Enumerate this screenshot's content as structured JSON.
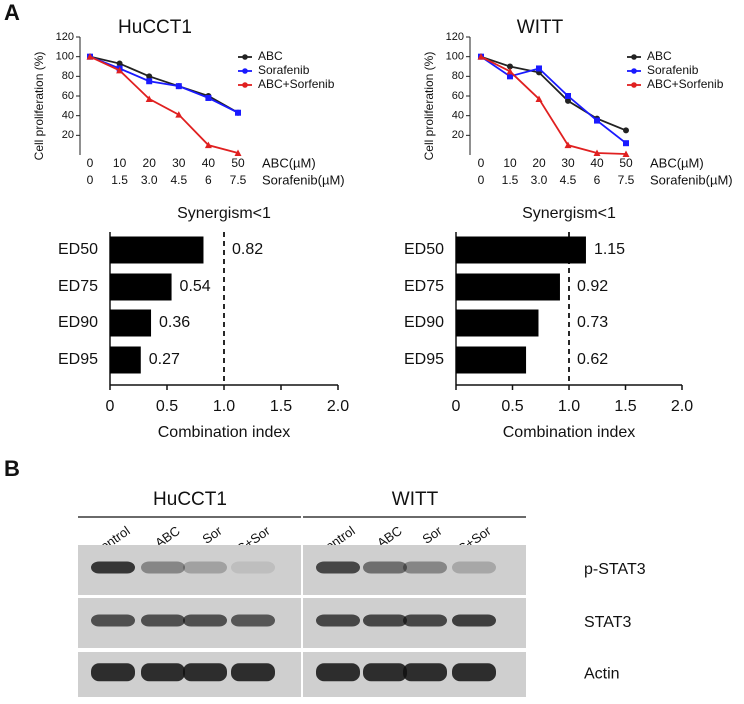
{
  "panels": [
    "A",
    "B"
  ],
  "chart_data": [
    {
      "type": "line",
      "title": "HuCCT1",
      "ylabel": "Cell proliferation (%)",
      "categories": [
        "0",
        "10",
        "20",
        "30",
        "40",
        "50"
      ],
      "category_label": "ABC(µM)",
      "categories2": [
        "0",
        "1.5",
        "3.0",
        "4.5",
        "6",
        "7.5"
      ],
      "category2_label": "Sorafenib(µM)",
      "ylim": [
        0,
        120
      ],
      "yticks": [
        20,
        40,
        60,
        80,
        100,
        120
      ],
      "series": [
        {
          "name": "ABC",
          "color": "#222222",
          "values": [
            100,
            93,
            80,
            70,
            60,
            43
          ]
        },
        {
          "name": "Sorafenib",
          "color": "#1a1aff",
          "values": [
            100,
            88,
            75,
            70,
            58,
            43
          ]
        },
        {
          "name": "ABC+Sorfenib",
          "color": "#e02020",
          "values": [
            100,
            86,
            57,
            41,
            10,
            2
          ]
        }
      ]
    },
    {
      "type": "line",
      "title": "WITT",
      "ylabel": "Cell proliferation (%)",
      "categories": [
        "0",
        "10",
        "20",
        "30",
        "40",
        "50"
      ],
      "category_label": "ABC(µM)",
      "categories2": [
        "0",
        "1.5",
        "3.0",
        "4.5",
        "6",
        "7.5"
      ],
      "category2_label": "Sorafenib(µM)",
      "ylim": [
        0,
        120
      ],
      "yticks": [
        20,
        40,
        60,
        80,
        100,
        120
      ],
      "series": [
        {
          "name": "ABC",
          "color": "#222222",
          "values": [
            100,
            90,
            84,
            55,
            37,
            25
          ]
        },
        {
          "name": "Sorafenib",
          "color": "#1a1aff",
          "values": [
            100,
            80,
            88,
            60,
            35,
            12
          ]
        },
        {
          "name": "ABC+Sorfenib",
          "color": "#e02020",
          "values": [
            100,
            85,
            57,
            10,
            2,
            1
          ]
        }
      ]
    },
    {
      "type": "bar",
      "title": "Synergism<1",
      "xlabel": "Combination index",
      "categories": [
        "ED50",
        "ED75",
        "ED90",
        "ED95"
      ],
      "values": [
        0.82,
        0.54,
        0.36,
        0.27
      ],
      "color": "#000000",
      "xlim": [
        0,
        2
      ],
      "xticks": [
        0,
        0.5,
        {
          "value": 1,
          "label": "1.0"
        },
        1.5,
        {
          "value": 2,
          "label": "2.0"
        }
      ],
      "refline": 1
    },
    {
      "type": "bar",
      "title": "Synergism<1",
      "xlabel": "Combination index",
      "categories": [
        "ED50",
        "ED75",
        "ED90",
        "ED95"
      ],
      "values": [
        1.15,
        0.92,
        0.73,
        0.62
      ],
      "color": "#000000",
      "xlim": [
        0,
        2
      ],
      "xticks": [
        0,
        0.5,
        {
          "value": 1,
          "label": "1.0"
        },
        1.5,
        {
          "value": 2,
          "label": "2.0"
        }
      ],
      "refline": 1
    }
  ],
  "blot": {
    "groups": [
      "HuCCT1",
      "WITT"
    ],
    "lanes": [
      "Control",
      "ABC",
      "Sor",
      "ABC+Sor"
    ],
    "rows": [
      "p-STAT3",
      "STAT3",
      "Actin"
    ]
  }
}
